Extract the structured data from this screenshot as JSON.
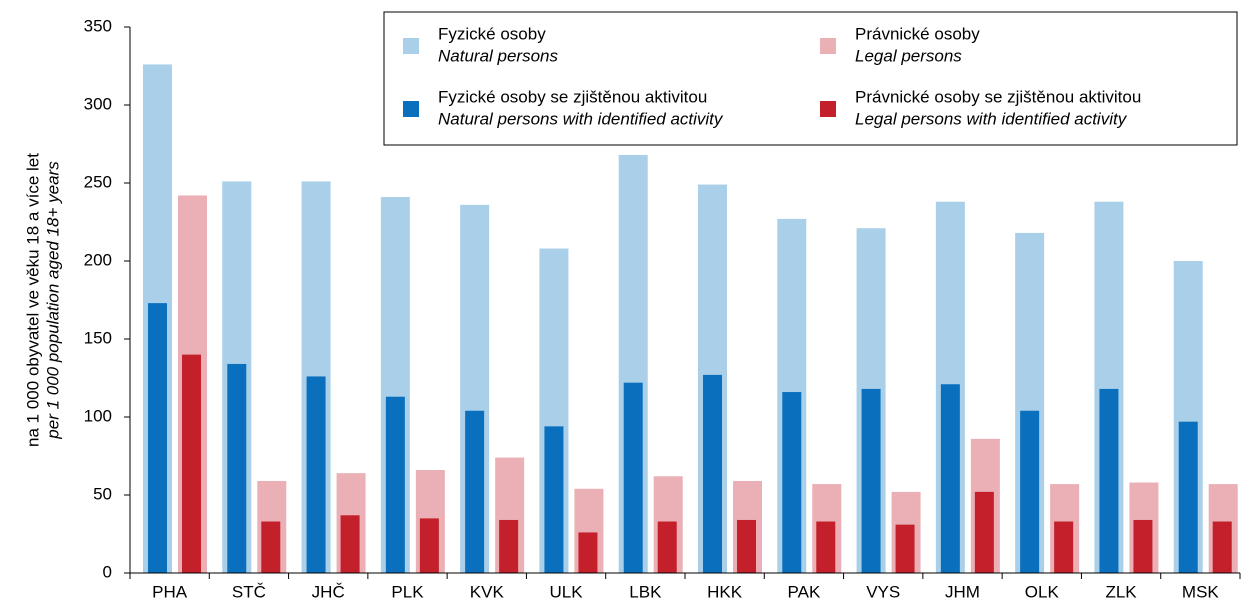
{
  "chart_data": {
    "type": "bar",
    "ylabel": "na 1 000 obyvatel ve věku 18 a více let",
    "ylabel_en": "per 1 000 population aged 18+ years",
    "categories": [
      "PHA",
      "STČ",
      "JHČ",
      "PLK",
      "KVK",
      "ULK",
      "LBK",
      "HKK",
      "PAK",
      "VYS",
      "JHM",
      "OLK",
      "ZLK",
      "MSK"
    ],
    "series": [
      {
        "name": "Fyzické osoby",
        "name_en": "Natural persons",
        "color": "#a9cfe9",
        "values": [
          326,
          251,
          251,
          241,
          236,
          208,
          268,
          249,
          227,
          221,
          238,
          218,
          238,
          200
        ]
      },
      {
        "name": "Fyzické osoby se zjištěnou aktivitou",
        "name_en": "Natural persons with identified activity",
        "color": "#0a70be",
        "values": [
          173,
          134,
          126,
          113,
          104,
          94,
          122,
          127,
          116,
          118,
          121,
          104,
          118,
          97
        ]
      },
      {
        "name": "Právnické osoby",
        "name_en": "Legal persons",
        "color": "#eab0b5",
        "values": [
          242,
          59,
          64,
          66,
          74,
          54,
          62,
          59,
          57,
          52,
          86,
          57,
          58,
          57
        ]
      },
      {
        "name": "Právnické osoby se zjištěnou aktivitou",
        "name_en": "Legal persons with identified activity",
        "color": "#c3202b",
        "values": [
          140,
          33,
          37,
          35,
          34,
          26,
          33,
          34,
          33,
          31,
          52,
          33,
          34,
          33
        ]
      }
    ],
    "ylim": [
      0,
      350
    ],
    "yticks": [
      0,
      50,
      100,
      150,
      200,
      250,
      300,
      350
    ],
    "grid": false,
    "legend": "top-right"
  }
}
